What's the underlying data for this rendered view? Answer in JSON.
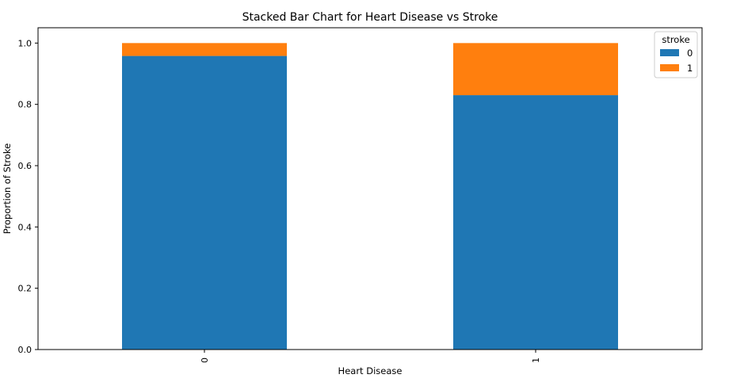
{
  "chart_data": {
    "type": "bar",
    "stacked": true,
    "title": "Stacked Bar Chart for Heart Disease vs Stroke",
    "xlabel": "Heart Disease",
    "ylabel": "Proportion of Stroke",
    "categories": [
      "0",
      "1"
    ],
    "series": [
      {
        "name": "0",
        "values": [
          0.958,
          0.83
        ],
        "color": "#1f77b4"
      },
      {
        "name": "1",
        "values": [
          0.042,
          0.17
        ],
        "color": "#ff7f0e"
      }
    ],
    "ylim": [
      0,
      1.05
    ],
    "yticks": [
      "0.0",
      "0.2",
      "0.4",
      "0.6",
      "0.8",
      "1.0"
    ],
    "legend": {
      "title": "stroke",
      "placement": "top-right"
    },
    "grid": false
  }
}
